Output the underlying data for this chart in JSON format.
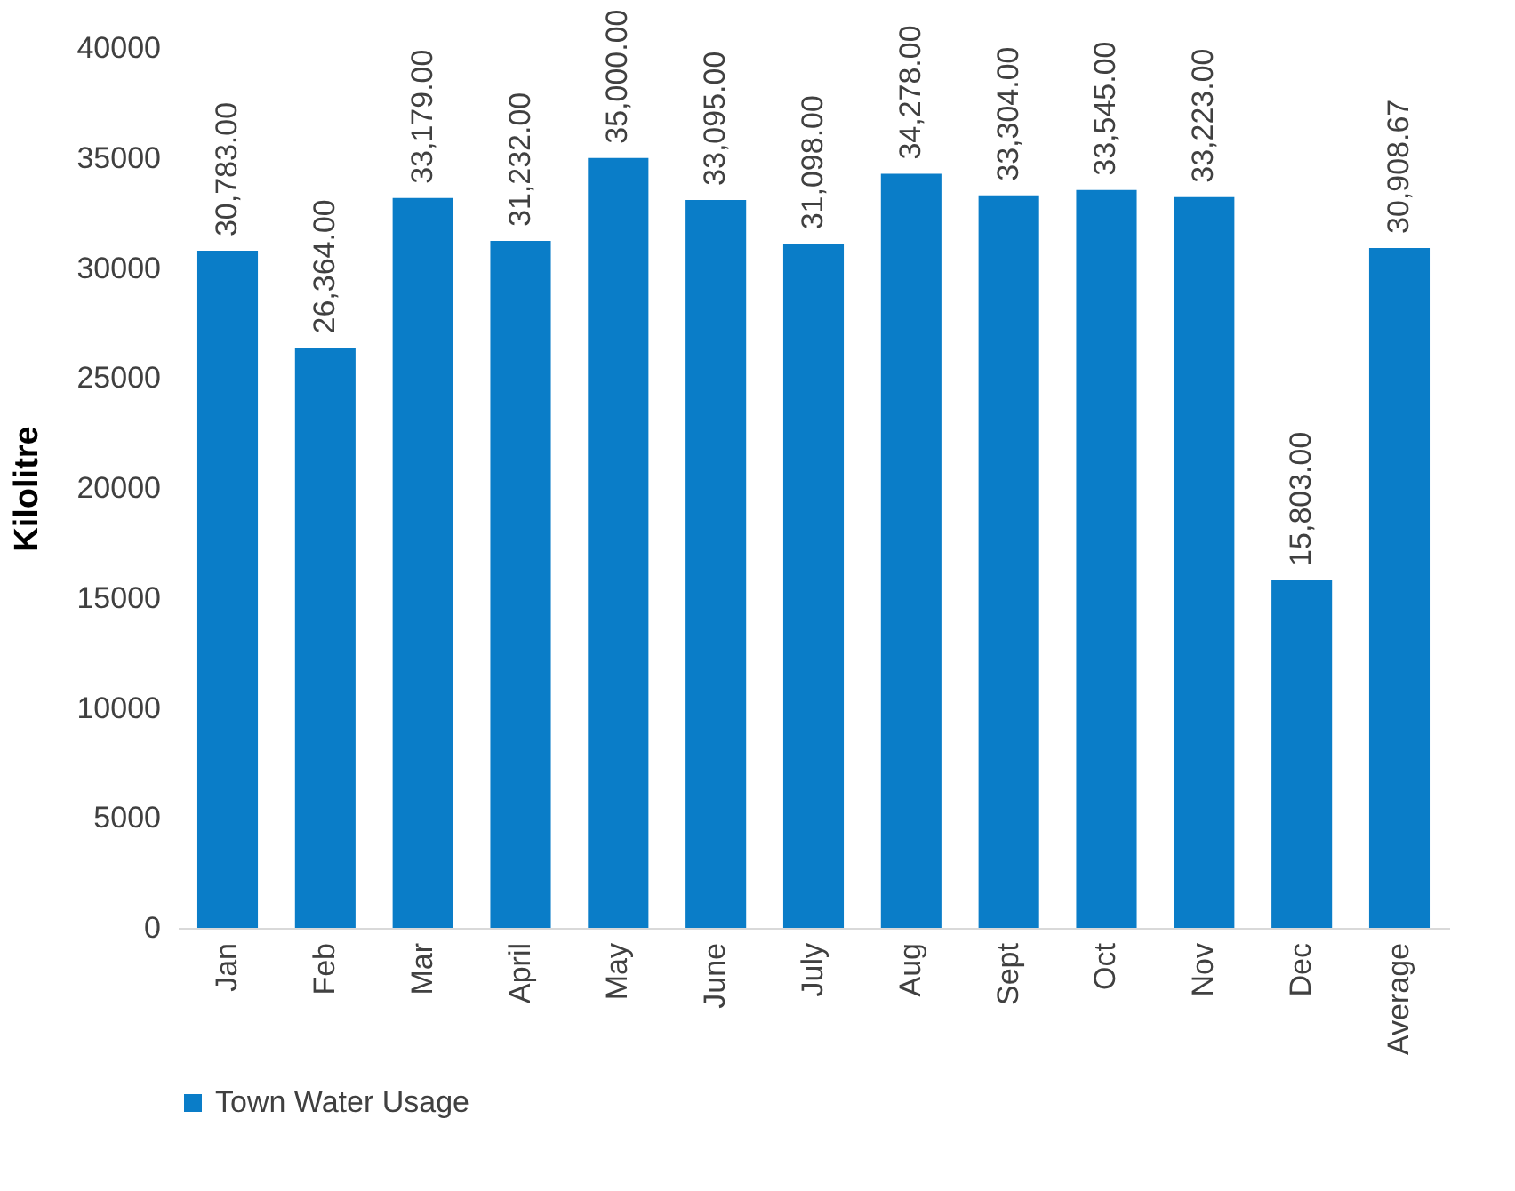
{
  "chart_data": {
    "type": "bar",
    "ylabel": "Kilolitre",
    "categories": [
      "Jan",
      "Feb",
      "Mar",
      "April",
      "May",
      "June",
      "July",
      "Aug",
      "Sept",
      "Oct",
      "Nov",
      "Dec",
      "Average"
    ],
    "series": [
      {
        "name": "Town Water Usage",
        "color": "#0a7dc8",
        "values": [
          30783,
          26364,
          33179,
          31232,
          35000,
          33095,
          31098,
          34278,
          33304,
          33545,
          33223,
          15803,
          30908.67
        ],
        "value_labels": [
          "30,783.00",
          "26,364.00",
          "33,179.00",
          "31,232.00",
          "35,000.00",
          "33,095.00",
          "31,098.00",
          "34,278.00",
          "33,304.00",
          "33,545.00",
          "33,223.00",
          "15,803.00",
          "30,908.67"
        ]
      }
    ],
    "ylim": [
      0,
      40000
    ],
    "yticks": [
      0,
      5000,
      10000,
      15000,
      20000,
      25000,
      30000,
      35000,
      40000
    ],
    "grid": false,
    "legend": "bottom"
  }
}
